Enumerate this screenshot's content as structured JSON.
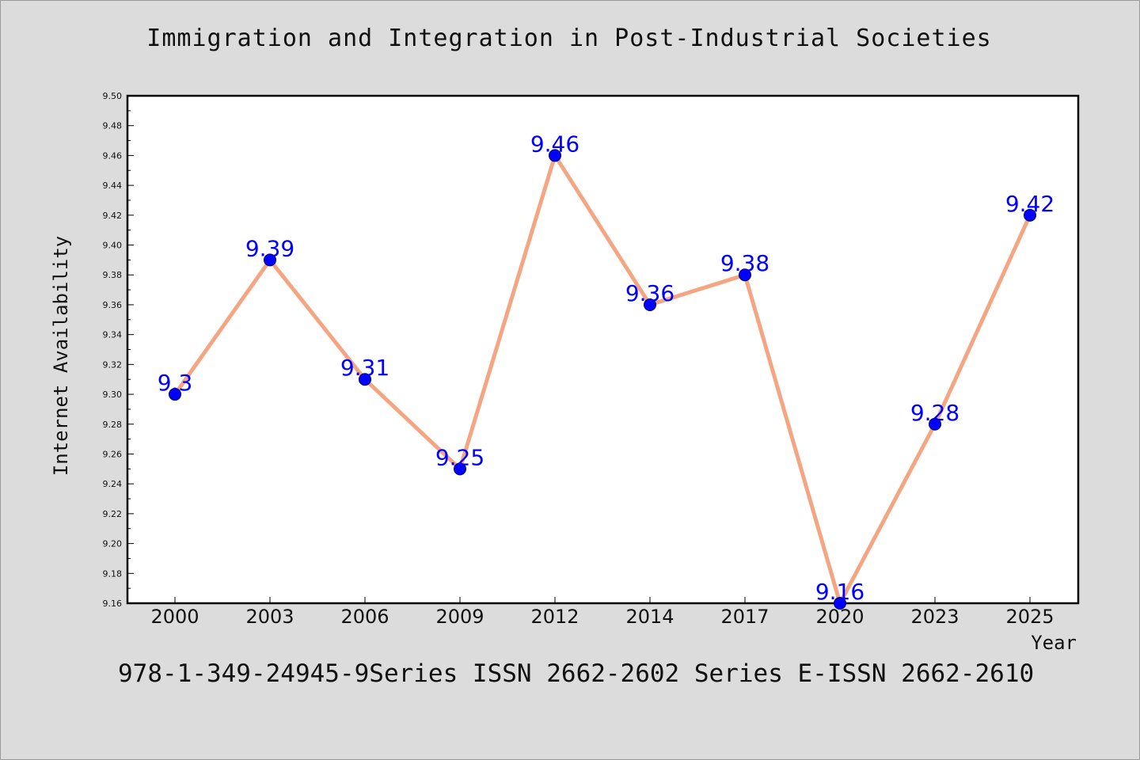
{
  "title": "Immigration and Integration in Post-Industrial Societies",
  "footer": "978-1-349-24945-9Series ISSN 2662-2602 Series E-ISSN 2662-2610",
  "colors": {
    "line": "#f4a582",
    "marker": "#0000ff",
    "marker_edge": "#000066",
    "data_label": "#0000ff",
    "plot_background": "#ffffff",
    "page_background": "#dcdcdc"
  },
  "chart_data": {
    "type": "line",
    "title": "Immigration and Integration in Post-Industrial Societies",
    "xlabel": "Year",
    "ylabel": "Internet Availability",
    "categories": [
      "2000",
      "2003",
      "2006",
      "2009",
      "2012",
      "2014",
      "2017",
      "2020",
      "2023",
      "2025"
    ],
    "series": [
      {
        "values": [
          9.3,
          9.39,
          9.31,
          9.25,
          9.46,
          9.36,
          9.38,
          9.16,
          9.28,
          9.42
        ],
        "labels": [
          "9.3",
          "9.39",
          "9.31",
          "9.25",
          "9.46",
          "9.36",
          "9.38",
          "9.16",
          "9.28",
          "9.42"
        ]
      }
    ],
    "ylim": [
      9.16,
      9.5
    ],
    "yticks": [
      "9.16",
      "9.18",
      "9.20",
      "9.22",
      "9.24",
      "9.26",
      "9.28",
      "9.30",
      "9.32",
      "9.34",
      "9.36",
      "9.38",
      "9.40",
      "9.42",
      "9.44",
      "9.46",
      "9.48",
      "9.50"
    ],
    "grid": false,
    "legend": "none"
  }
}
